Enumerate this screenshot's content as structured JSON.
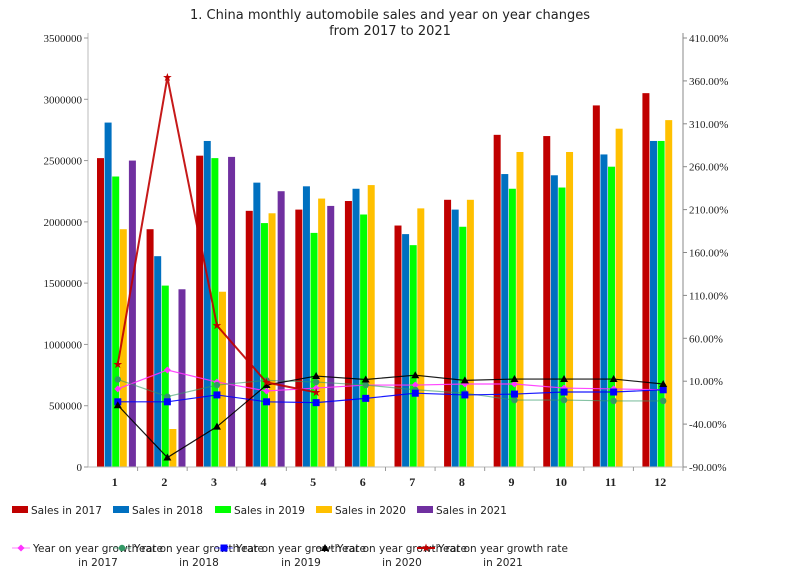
{
  "chart_data": {
    "type": "bar",
    "title_line1": "1. China monthly automobile sales and year on year changes",
    "title_line2": "from 2017 to 2021",
    "categories": [
      "1",
      "2",
      "3",
      "4",
      "5",
      "6",
      "7",
      "8",
      "9",
      "10",
      "11",
      "12"
    ],
    "y_left": {
      "range": [
        0,
        3500000
      ],
      "ticks": [
        "0",
        "500000",
        "1000000",
        "1500000",
        "2000000",
        "2500000",
        "3000000",
        "3500000"
      ]
    },
    "y_right": {
      "range": [
        -90,
        410
      ],
      "unit": "%",
      "ticks": [
        "-90.00%",
        "-40.00%",
        "10.00%",
        "60.00%",
        "110.00%",
        "160.00%",
        "210.00%",
        "260.00%",
        "310.00%",
        "360.00%",
        "410.00%"
      ]
    },
    "grid": false,
    "legend_placement": "bottom",
    "bar_series": [
      {
        "name": "Sales in 2017",
        "color": "#C00000",
        "values": [
          2520000,
          1940000,
          2540000,
          2090000,
          2100000,
          2170000,
          1970000,
          2180000,
          2710000,
          2700000,
          2950000,
          3050000
        ]
      },
      {
        "name": "Sales in 2018",
        "color": "#0070C0",
        "values": [
          2810000,
          1720000,
          2660000,
          2320000,
          2290000,
          2270000,
          1900000,
          2100000,
          2390000,
          2380000,
          2550000,
          2660000
        ]
      },
      {
        "name": "Sales in 2019",
        "color": "#00FF00",
        "values": [
          2370000,
          1480000,
          2520000,
          1990000,
          1910000,
          2060000,
          1810000,
          1960000,
          2270000,
          2280000,
          2450000,
          2660000
        ]
      },
      {
        "name": "Sales in 2020",
        "color": "#FFC000",
        "values": [
          1940000,
          310000,
          1430000,
          2070000,
          2190000,
          2300000,
          2110000,
          2180000,
          2570000,
          2570000,
          2760000,
          2830000
        ]
      },
      {
        "name": "Sales in 2021",
        "color": "#7030A0",
        "values": [
          2500000,
          1450000,
          2530000,
          2250000,
          2130000,
          null,
          null,
          null,
          null,
          null,
          null,
          null
        ]
      }
    ],
    "line_series": [
      {
        "name": "Year on year growth rate in 2017",
        "name_line1": "Year on year growth rate",
        "name_line2": "in 2017",
        "color": "#FF33FF",
        "marker": "diamond",
        "values": [
          1,
          23,
          9,
          -1.4,
          2,
          5.5,
          5.5,
          6.7,
          6.7,
          2,
          1,
          0
        ]
      },
      {
        "name": "Year on year growth rate in 2018",
        "name_line1": "Year on year growth rate",
        "name_line2": "in 2018",
        "color": "#339966",
        "marker": "circle",
        "values": [
          12,
          -8,
          5.5,
          11,
          9,
          5.5,
          0,
          -4,
          -12,
          -12,
          -13,
          -13
        ]
      },
      {
        "name": "Year on year growth rate in 2019",
        "name_line1": "Year on year growth rate",
        "name_line2": "in 2019",
        "color": "#0000FF",
        "marker": "square",
        "values": [
          -14,
          -14,
          -6,
          -14,
          -15,
          -10,
          -4,
          -6,
          -5,
          -2.6,
          -2.6,
          0
        ]
      },
      {
        "name": "Year on year growth rate in 2020",
        "name_line1": "Year on year growth rate",
        "name_line2": "in 2020",
        "color": "#000000",
        "marker": "triangle",
        "values": [
          -18,
          -79,
          -43,
          5.5,
          16,
          12,
          17,
          11,
          12.5,
          12.5,
          12.5,
          6.7
        ]
      },
      {
        "name": "Year on year growth rate in 2021",
        "name_line1": "Year on year growth rate",
        "name_line2": "in 2021",
        "color": "#C00000",
        "marker": "star",
        "values": [
          29.5,
          364,
          74.9,
          8.6,
          -3.1,
          null,
          null,
          null,
          null,
          null,
          null,
          null
        ]
      }
    ]
  }
}
